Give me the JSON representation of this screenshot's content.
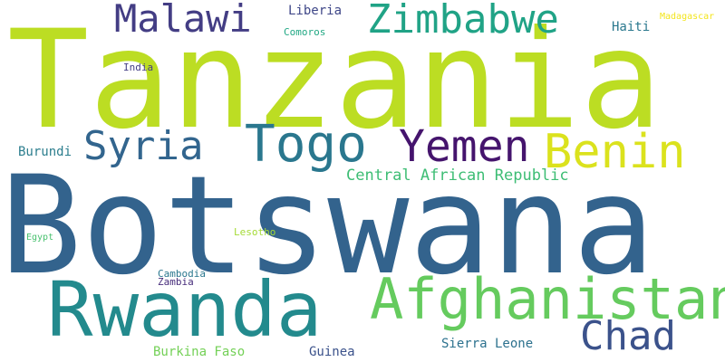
{
  "words": {
    "tanzania": {
      "text": "Tanzania",
      "color": "#bcdd23"
    },
    "botswana": {
      "text": "Botswana",
      "color": "#33638d"
    },
    "rwanda": {
      "text": "Rwanda",
      "color": "#238a8d"
    },
    "afghanistan": {
      "text": "Afghanistan",
      "color": "#65cb5e"
    },
    "togo": {
      "text": "Togo",
      "color": "#2a778e"
    },
    "yemen": {
      "text": "Yemen",
      "color": "#45146d"
    },
    "benin": {
      "text": "Benin",
      "color": "#dbe21d"
    },
    "syria": {
      "text": "Syria",
      "color": "#32658e"
    },
    "zimbabwe": {
      "text": "Zimbabwe",
      "color": "#20a386"
    },
    "malawi": {
      "text": "Malawi",
      "color": "#433d84"
    },
    "chad": {
      "text": "Chad",
      "color": "#3b528b"
    },
    "central_african_republic": {
      "text": "Central African Republic",
      "color": "#3dbd74"
    },
    "burundi": {
      "text": "Burundi",
      "color": "#2c7e8e"
    },
    "liberia": {
      "text": "Liberia",
      "color": "#3f4788"
    },
    "haiti": {
      "text": "Haiti",
      "color": "#2a788e"
    },
    "comoros": {
      "text": "Comoros",
      "color": "#22a884"
    },
    "madagascar": {
      "text": "Madagascar",
      "color": "#f3e51e"
    },
    "india": {
      "text": "India",
      "color": "#433d84"
    },
    "egypt": {
      "text": "Egypt",
      "color": "#48c16e"
    },
    "lesotho": {
      "text": "Lesotho",
      "color": "#a5db36"
    },
    "cambodia": {
      "text": "Cambodia",
      "color": "#2a778e"
    },
    "zambia": {
      "text": "Zambia",
      "color": "#472d7b"
    },
    "burkina_faso": {
      "text": "Burkina Faso",
      "color": "#73d056"
    },
    "guinea": {
      "text": "Guinea",
      "color": "#3b528b"
    },
    "sierra_leone": {
      "text": "Sierra Leone",
      "color": "#2c718e"
    }
  }
}
